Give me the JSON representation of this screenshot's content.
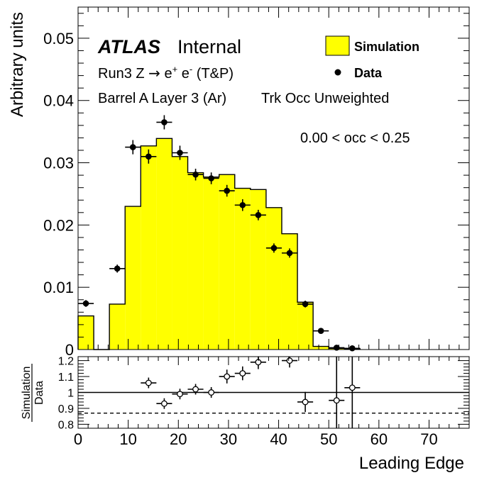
{
  "chart_data": [
    {
      "type": "histogram",
      "ylabel": "Arbitrary units",
      "xlim": [
        0,
        78
      ],
      "ylim": [
        0,
        0.055
      ],
      "yticks": [
        0,
        0.01,
        0.02,
        0.03,
        0.04,
        0.05
      ],
      "ytick_labels": [
        "0",
        "0.01",
        "0.02",
        "0.03",
        "0.04",
        "0.05"
      ],
      "annotations": {
        "atlas": "ATLAS",
        "internal": "Internal",
        "line1_prefix": "Run3 Z ",
        "line1_arrow": "→",
        "line1_e1": " e",
        "line1_plus": "+",
        "line1_e2": " e",
        "line1_minus": "-",
        "line1_suffix": " (T&P)",
        "line2_left": "Barrel A Layer 3 (Ar)",
        "line2_right": "Trk Occ Unweighted",
        "range": "0.00 < occ < 0.25"
      },
      "legend": {
        "placement": "top-right",
        "simulation": "Simulation",
        "data": "Data"
      },
      "colors": {
        "simulation_fill": "#ffff00",
        "simulation_line": "#000000",
        "data_marker": "#000000"
      },
      "simulation": {
        "name": "Simulation",
        "edges": [
          0,
          3.125,
          6.25,
          9.375,
          12.5,
          15.625,
          18.75,
          21.875,
          25,
          28.125,
          31.25,
          34.375,
          37.5,
          40.625,
          43.75,
          46.875,
          50,
          53.125,
          56.25
        ],
        "values": [
          0.0054,
          0,
          0.0073,
          0.023,
          0.0327,
          0.0339,
          0.031,
          0.0284,
          0.0277,
          0.0281,
          0.0259,
          0.0257,
          0.0228,
          0.0186,
          0.0076,
          0.0005,
          0.0002,
          0.0001
        ]
      },
      "data": {
        "name": "Data",
        "bin_half_width": 1.5625,
        "x": [
          1.5625,
          7.8125,
          10.9375,
          14.0625,
          17.1875,
          20.3125,
          23.4375,
          26.5625,
          29.6875,
          32.8125,
          35.9375,
          39.0625,
          42.1875,
          45.3125,
          48.4375,
          51.5625,
          54.6875
        ],
        "y": [
          0.0074,
          0.013,
          0.0325,
          0.031,
          0.0365,
          0.0316,
          0.0281,
          0.0275,
          0.0255,
          0.0232,
          0.0216,
          0.0163,
          0.0155,
          0.0073,
          0.003,
          0.0003,
          0.0002
        ],
        "yerr": [
          0.0002,
          0.0003,
          0.0008,
          0.0008,
          0.0008,
          0.0008,
          0.0006,
          0.0006,
          0.0006,
          0.0006,
          0.0005,
          0.0004,
          0.0004,
          0.0002,
          0.0001,
          0.0001,
          0.0001
        ]
      }
    },
    {
      "type": "scatter",
      "ylabel_top": "Simulation",
      "ylabel_bottom": "Data",
      "xlabel": "Leading Edge",
      "xlim": [
        0,
        78
      ],
      "ylim": [
        0.775,
        1.225
      ],
      "yticks": [
        0.8,
        0.9,
        1,
        1.1,
        1.2
      ],
      "ytick_labels": [
        "0.8",
        "0.9",
        "1",
        "1.1",
        "1.2"
      ],
      "xticks": [
        0,
        10,
        20,
        30,
        40,
        50,
        60,
        70
      ],
      "xtick_labels": [
        "0",
        "10",
        "20",
        "30",
        "40",
        "50",
        "60",
        "70"
      ],
      "reference_line": 1.0,
      "dashed_line": 0.87,
      "points": {
        "x": [
          14.0625,
          17.1875,
          20.3125,
          23.4375,
          26.5625,
          29.6875,
          32.8125,
          35.9375,
          42.1875,
          45.3125,
          51.5625,
          54.6875
        ],
        "y": [
          1.06,
          0.93,
          0.99,
          1.02,
          1.0,
          1.1,
          1.12,
          1.19,
          1.2,
          0.94,
          0.95,
          1.03
        ],
        "yerr": [
          0.02,
          0.02,
          0.02,
          0.02,
          0.02,
          0.03,
          0.03,
          0.03,
          0.03,
          0.05,
          0.35,
          0.35
        ]
      }
    }
  ]
}
